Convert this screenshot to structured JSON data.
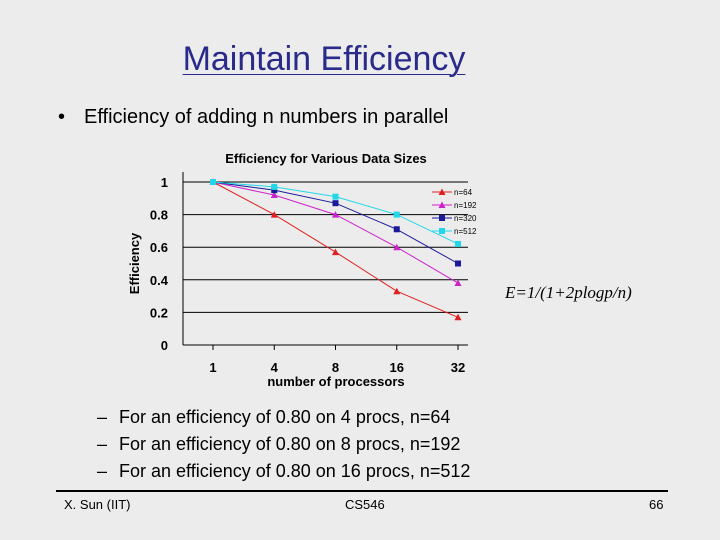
{
  "slide": {
    "title": "Maintain Efficiency",
    "bullet": "Efficiency of adding n numbers in parallel",
    "formula": "E=1/(1+2plogp/n)",
    "sub_bullets": [
      "For an efficiency of 0.80 on 4 procs, n=64",
      "For an efficiency of 0.80 on 8 procs, n=192",
      "For an efficiency of 0.80 on 16 procs, n=512"
    ],
    "footer": {
      "left": "X. Sun (IIT)",
      "center": "CS546",
      "right": "66"
    },
    "bullet_char": "•",
    "dash_char": "–"
  },
  "chart_data": {
    "type": "line",
    "title": "Efficiency for Various Data Sizes",
    "xlabel": "number of processors",
    "ylabel": "Efficiency",
    "categories": [
      "1",
      "4",
      "8",
      "16",
      "32"
    ],
    "ylim": [
      0,
      1
    ],
    "yticks": [
      0,
      0.2,
      0.4,
      0.6,
      0.8,
      1
    ],
    "ytick_labels": [
      "0",
      "0.2",
      "0.4",
      "0.6",
      "0.8",
      "1"
    ],
    "grid": true,
    "legend": "right",
    "series": [
      {
        "name": "n=64",
        "color": "#e02020",
        "marker": "triangle",
        "values": [
          1.0,
          0.8,
          0.57,
          0.33,
          0.17
        ]
      },
      {
        "name": "n=192",
        "color": "#cc22cc",
        "marker": "triangle",
        "values": [
          1.0,
          0.92,
          0.8,
          0.6,
          0.38
        ]
      },
      {
        "name": "n=320",
        "color": "#1a1a9a",
        "marker": "square",
        "values": [
          1.0,
          0.95,
          0.87,
          0.71,
          0.5
        ]
      },
      {
        "name": "n=512",
        "color": "#22d8e8",
        "marker": "square",
        "values": [
          1.0,
          0.97,
          0.91,
          0.8,
          0.62
        ]
      }
    ]
  }
}
